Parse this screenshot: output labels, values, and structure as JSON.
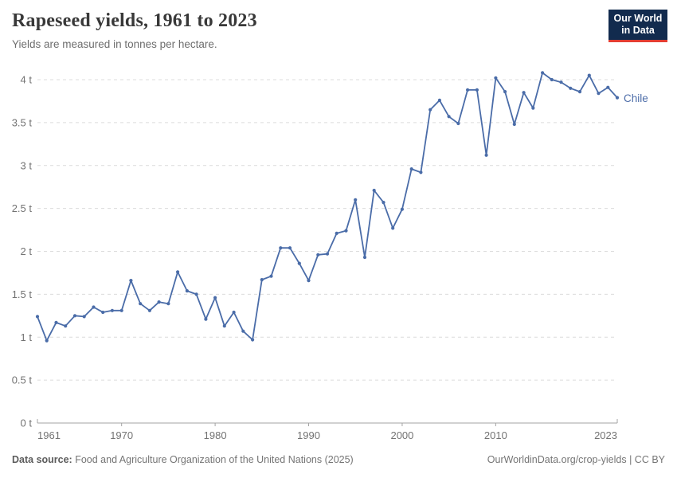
{
  "header": {
    "title": "Rapeseed yields, 1961 to 2023",
    "subtitle": "Yields are measured in tonnes per hectare."
  },
  "logo": {
    "line1": "Our World",
    "line2": "in Data",
    "bg_color": "#122B4E",
    "accent_color": "#E33D32"
  },
  "chart_data": {
    "type": "line",
    "title": "Rapeseed yields, 1961 to 2023",
    "unit": "tonnes per hectare",
    "xlabel": "",
    "ylabel": "",
    "ylim": [
      0,
      4
    ],
    "x_range": [
      1961,
      2023
    ],
    "grid": "horizontal dashed",
    "legend_position": "end-of-line label",
    "line_color": "#4A6CA8",
    "grid_color": "#dcdcdc",
    "axis_color": "#a3a3a3",
    "tick_label_color": "#737373",
    "yticks": [
      {
        "value": 0,
        "label": "0 t"
      },
      {
        "value": 0.5,
        "label": "0.5 t"
      },
      {
        "value": 1,
        "label": "1 t"
      },
      {
        "value": 1.5,
        "label": "1.5 t"
      },
      {
        "value": 2,
        "label": "2 t"
      },
      {
        "value": 2.5,
        "label": "2.5 t"
      },
      {
        "value": 3,
        "label": "3 t"
      },
      {
        "value": 3.5,
        "label": "3.5 t"
      },
      {
        "value": 4,
        "label": "4 t"
      }
    ],
    "xticks": [
      {
        "year": 1961,
        "label": "1961",
        "anchor": "start"
      },
      {
        "year": 1970,
        "label": "1970",
        "anchor": "middle"
      },
      {
        "year": 1980,
        "label": "1980",
        "anchor": "middle"
      },
      {
        "year": 1990,
        "label": "1990",
        "anchor": "middle"
      },
      {
        "year": 2000,
        "label": "2000",
        "anchor": "middle"
      },
      {
        "year": 2010,
        "label": "2010",
        "anchor": "middle"
      },
      {
        "year": 2023,
        "label": "2023",
        "anchor": "end"
      }
    ],
    "series": [
      {
        "name": "Chile",
        "x": [
          1961,
          1962,
          1963,
          1964,
          1965,
          1966,
          1967,
          1968,
          1969,
          1970,
          1971,
          1972,
          1973,
          1974,
          1975,
          1976,
          1977,
          1978,
          1979,
          1980,
          1981,
          1982,
          1983,
          1984,
          1985,
          1986,
          1987,
          1988,
          1989,
          1990,
          1991,
          1992,
          1993,
          1994,
          1995,
          1996,
          1997,
          1998,
          1999,
          2000,
          2001,
          2002,
          2003,
          2004,
          2005,
          2006,
          2007,
          2008,
          2009,
          2010,
          2011,
          2012,
          2013,
          2014,
          2015,
          2016,
          2017,
          2018,
          2019,
          2020,
          2021,
          2022,
          2023
        ],
        "values": [
          1.24,
          0.96,
          1.17,
          1.13,
          1.25,
          1.24,
          1.35,
          1.29,
          1.31,
          1.31,
          1.66,
          1.39,
          1.31,
          1.41,
          1.39,
          1.76,
          1.54,
          1.5,
          1.21,
          1.46,
          1.13,
          1.29,
          1.07,
          0.97,
          1.67,
          1.71,
          2.04,
          2.04,
          1.86,
          1.66,
          1.96,
          1.97,
          2.21,
          2.24,
          2.6,
          1.93,
          2.71,
          2.57,
          2.27,
          2.49,
          2.96,
          2.92,
          3.65,
          3.76,
          3.57,
          3.49,
          3.88,
          3.88,
          3.12,
          4.02,
          3.86,
          3.48,
          3.85,
          3.67,
          4.08,
          4.0,
          3.97,
          3.9,
          3.86,
          4.05,
          3.84,
          3.91,
          3.79
        ]
      }
    ]
  },
  "footer": {
    "source_label": "Data source:",
    "source_text": " Food and Agriculture Organization of the United Nations (2025)",
    "credit": "OurWorldinData.org/crop-yields | CC BY"
  }
}
